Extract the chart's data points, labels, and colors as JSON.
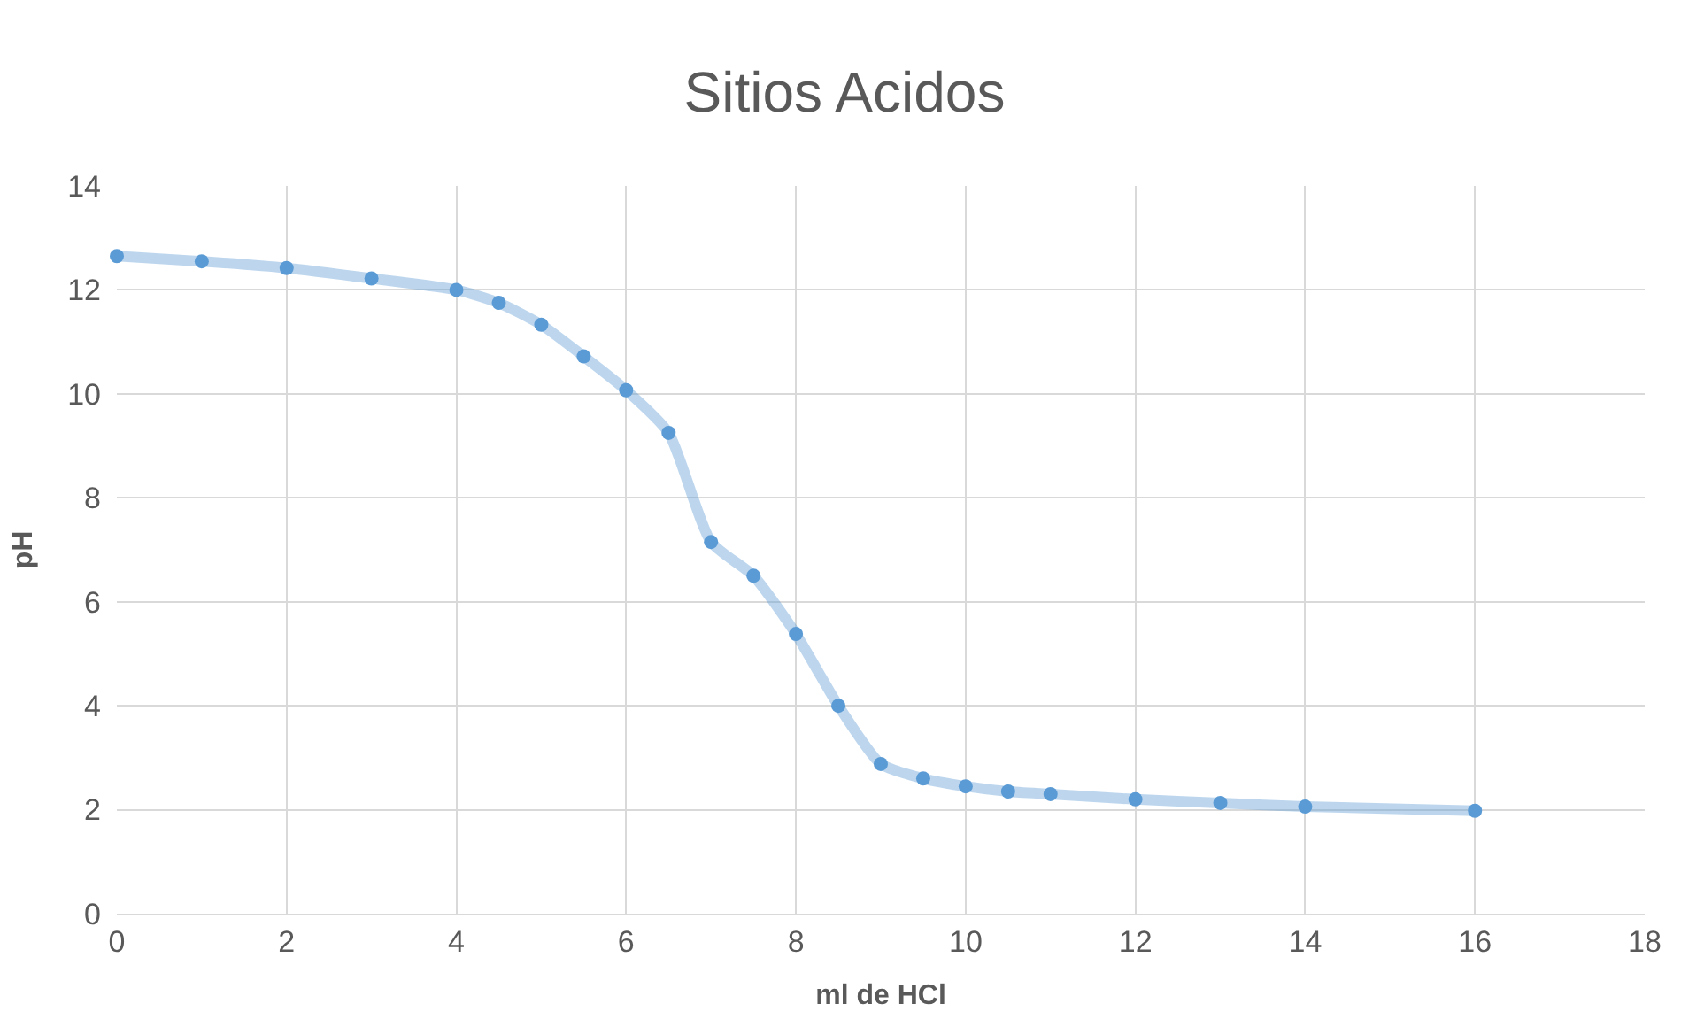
{
  "chart_data": {
    "type": "line",
    "title": "Sitios Acidos",
    "xlabel": "ml de HCl",
    "ylabel": "pH",
    "x": [
      0,
      1,
      2,
      3,
      4,
      4.5,
      5,
      5.5,
      6,
      6.5,
      7,
      7.5,
      8,
      8.5,
      9,
      9.5,
      10,
      10.5,
      11,
      12,
      13,
      14,
      16
    ],
    "series": [
      {
        "color": "#5b9bd5",
        "values": [
          12.65,
          12.55,
          12.42,
          12.22,
          12.0,
          11.75,
          11.33,
          10.72,
          10.07,
          9.25,
          7.15,
          6.5,
          5.38,
          4.0,
          2.88,
          2.6,
          2.45,
          2.35,
          2.3,
          2.2,
          2.13,
          2.06,
          1.98
        ]
      }
    ],
    "xlim": [
      0,
      18
    ],
    "xticks": [
      0,
      2,
      4,
      6,
      8,
      10,
      12,
      14,
      16,
      18
    ],
    "ylim": [
      0,
      14
    ],
    "yticks": [
      0,
      2,
      4,
      6,
      8,
      10,
      12,
      14
    ],
    "grid": true,
    "marker": "circle",
    "line_style": "solid"
  }
}
